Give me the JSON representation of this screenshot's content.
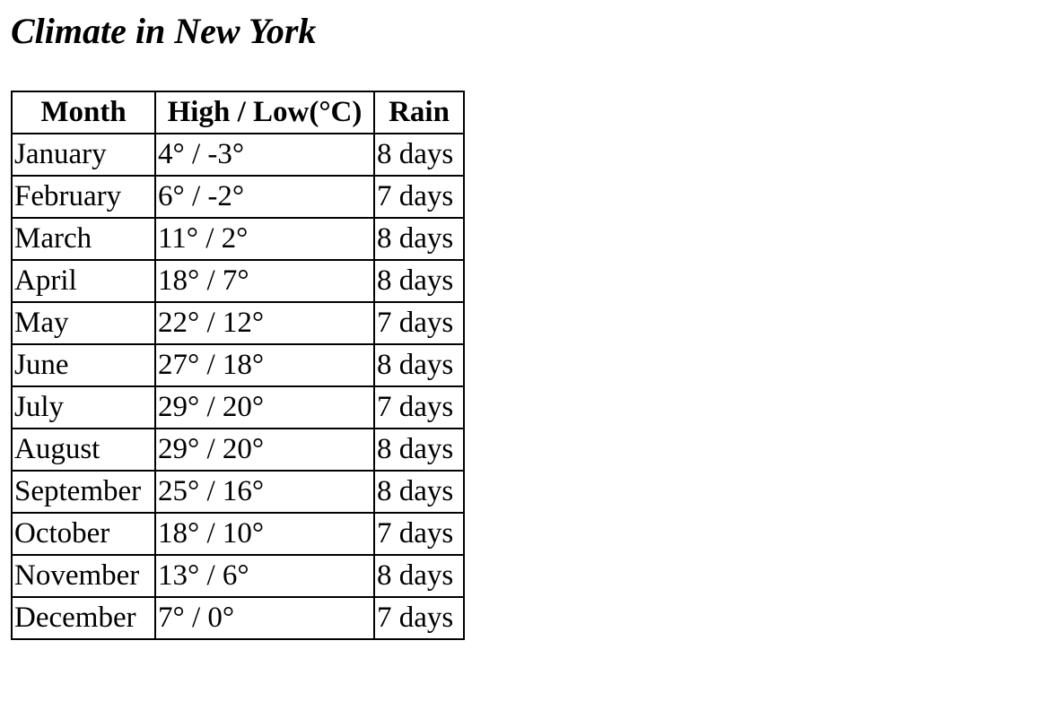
{
  "title": "Climate in New York",
  "table": {
    "headers": [
      "Month",
      "High / Low(°C)",
      "Rain"
    ],
    "rows": [
      [
        "January",
        "4° / -3°",
        "8 days"
      ],
      [
        "February",
        "6° / -2°",
        "7 days"
      ],
      [
        "March",
        "11° / 2°",
        "8 days"
      ],
      [
        "April",
        "18° / 7°",
        "8 days"
      ],
      [
        "May",
        "22° / 12°",
        "7 days"
      ],
      [
        "June",
        "27° / 18°",
        "8 days"
      ],
      [
        "July",
        "29° / 20°",
        "7 days"
      ],
      [
        "August",
        "29° / 20°",
        "8 days"
      ],
      [
        "September",
        "25° / 16°",
        "8 days"
      ],
      [
        "October",
        "18° / 10°",
        "7 days"
      ],
      [
        "November",
        "13° / 6°",
        "8 days"
      ],
      [
        "December",
        "7° / 0°",
        "7 days"
      ]
    ]
  }
}
